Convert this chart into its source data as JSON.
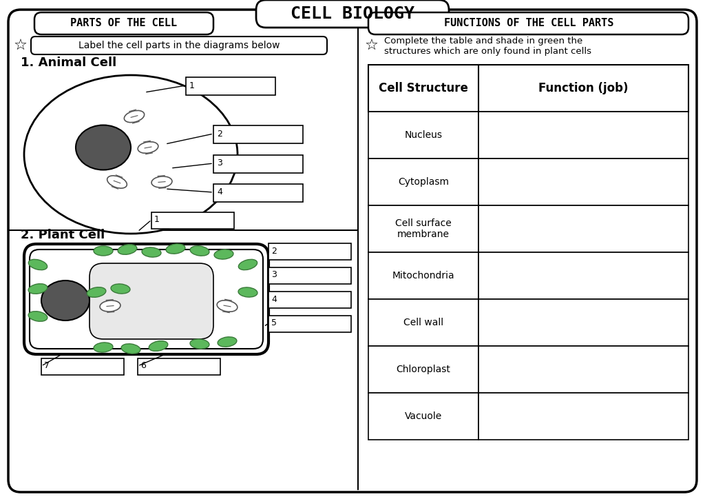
{
  "title": "CELL BIOLOGY",
  "left_section_title": "PARTS OF THE CELL",
  "right_section_title": "FUNCTIONS OF THE CELL PARTS",
  "instruction_left": "Label the cell parts in the diagrams below",
  "instruction_right": "Complete the table and shade in green the\nstructures which are only found in plant cells",
  "animal_cell_label": "1. Animal Cell",
  "plant_cell_label": "2. Plant Cell",
  "table_headers": [
    "Cell Structure",
    "Function (job)"
  ],
  "table_rows": [
    "Nucleus",
    "Cytoplasm",
    "Cell surface\nmembrane",
    "Mitochondria",
    "Cell wall",
    "Chloroplast",
    "Vacuole"
  ],
  "animal_labels": [
    "1",
    "2",
    "3",
    "4"
  ],
  "plant_labels": [
    "1",
    "2",
    "3",
    "4",
    "5",
    "6",
    "7"
  ],
  "bg_color": "#ffffff",
  "border_color": "#000000",
  "text_color": "#000000",
  "green_color": "#5cb85c",
  "light_gray": "#f0f0f0",
  "dark_gray": "#333333"
}
